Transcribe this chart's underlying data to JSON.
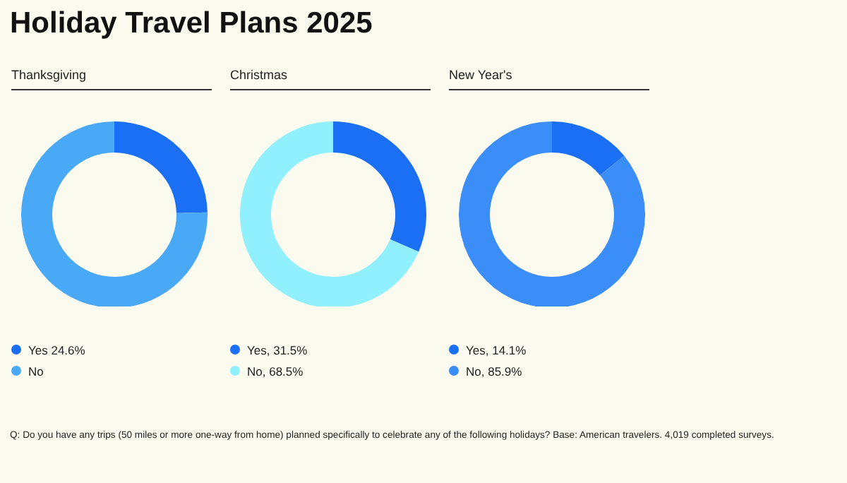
{
  "chart_data": [
    {
      "type": "donut",
      "title": "Thanksgiving",
      "categories": [
        "Yes 24.6%",
        "No"
      ],
      "values": [
        24.6,
        75.4
      ],
      "colors": [
        "#1a6ff5",
        "#4aa9f7"
      ],
      "legend": "bottom",
      "annotations": [
        "Holiday Travel Plans 2025",
        "Q: Do you have any trips (50 miles or more one-way from home) planned specifically to celebrate any of the following holidays? Base: American travelers. 4,019 completed surveys."
      ]
    },
    {
      "type": "donut",
      "title": "Christmas",
      "categories": [
        "Yes, 31.5%",
        "No, 68.5%"
      ],
      "values": [
        31.5,
        68.5
      ],
      "colors": [
        "#1a6ff5",
        "#90f0fd"
      ],
      "legend": "bottom"
    },
    {
      "type": "donut",
      "title": "New Year's",
      "categories": [
        "Yes, 14.1%",
        "No, 85.9%"
      ],
      "values": [
        14.1,
        85.9
      ],
      "colors": [
        "#1a6ff5",
        "#3b8df7"
      ],
      "legend": "bottom"
    }
  ]
}
